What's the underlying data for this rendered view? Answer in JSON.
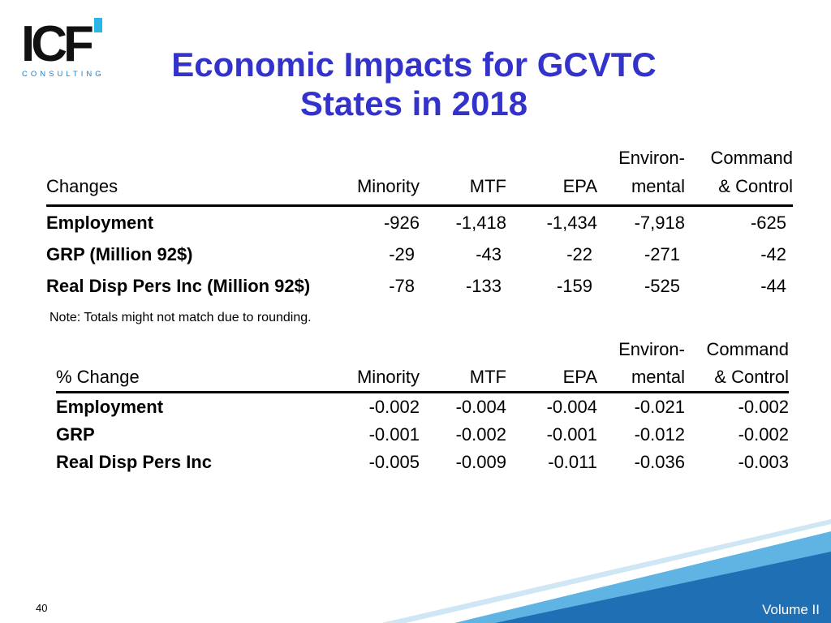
{
  "logo": {
    "letters": "ICF",
    "sub": "CONSULTING"
  },
  "title": {
    "line1": "Economic Impacts for GCVTC",
    "line2": "States in 2018"
  },
  "table1": {
    "header_top": [
      "",
      "",
      "",
      "",
      "Environ-",
      "Command"
    ],
    "header": [
      "Changes",
      "Minority",
      "MTF",
      "EPA",
      "mental",
      "& Control"
    ],
    "rows": [
      [
        "Employment",
        "-926",
        "-1,418",
        "-1,434",
        "-7,918",
        "-625"
      ],
      [
        "GRP (Million 92$)",
        "-29",
        "-43",
        "-22",
        "-271",
        "-42"
      ],
      [
        "Real Disp Pers Inc (Million 92$)",
        "-78",
        "-133",
        "-159",
        "-525",
        "-44"
      ]
    ]
  },
  "note": "Note: Totals might not match due to rounding.",
  "table2": {
    "header_top": [
      "",
      "",
      "",
      "",
      "Environ-",
      "Command"
    ],
    "header": [
      "% Change",
      "Minority",
      "MTF",
      "EPA",
      "mental",
      "& Control"
    ],
    "rows": [
      [
        "Employment",
        "-0.002",
        "-0.004",
        "-0.004",
        "-0.021",
        "-0.002"
      ],
      [
        "GRP",
        "-0.001",
        "-0.002",
        "-0.001",
        "-0.012",
        "-0.002"
      ],
      [
        "Real Disp Pers Inc",
        "-0.005",
        "-0.009",
        "-0.011",
        "-0.036",
        "-0.003"
      ]
    ]
  },
  "footer": {
    "page": "40",
    "volume": "Volume II"
  },
  "colors": {
    "title": "#3333cc",
    "band_dark": "#1f6fb5",
    "band_light": "#5fb4e3",
    "logo_accent": "#29b5e8"
  }
}
